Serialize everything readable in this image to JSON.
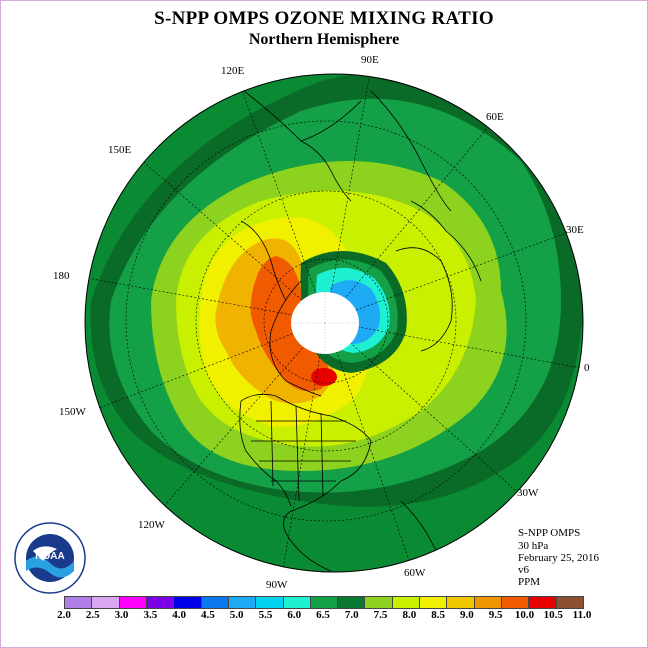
{
  "header": {
    "title": "S-NPP OMPS OZONE MIXING RATIO",
    "subtitle": "Northern Hemisphere"
  },
  "map": {
    "projection": "north-polar-stereographic",
    "longitude_labels": [
      "0",
      "30E",
      "60E",
      "90E",
      "120E",
      "150E",
      "180",
      "150W",
      "120W",
      "90W",
      "60W",
      "30W"
    ],
    "pole_region": "no-data"
  },
  "info": {
    "instrument": "S-NPP OMPS",
    "level": "30 hPa",
    "date": "February 25, 2016",
    "version": "v6",
    "units": "PPM"
  },
  "legend": {
    "ticks": [
      "2.0",
      "2.5",
      "3.0",
      "3.5",
      "4.0",
      "4.5",
      "5.0",
      "5.5",
      "6.0",
      "6.5",
      "7.0",
      "7.5",
      "8.0",
      "8.5",
      "9.0",
      "9.5",
      "10.0",
      "10.5",
      "11.0"
    ],
    "colors": [
      "#b07ee6",
      "#d9a6f0",
      "#ff00ff",
      "#7a00e6",
      "#0000e6",
      "#0a78f0",
      "#1eaaf5",
      "#00d2f0",
      "#1ef0d2",
      "#14a046",
      "#0a7832",
      "#8cd21e",
      "#c8f000",
      "#f0f000",
      "#f0c800",
      "#f09600",
      "#f05a00",
      "#e60000",
      "#8c5032"
    ]
  },
  "logo": {
    "name": "NOAA",
    "ring_text": "NATIONAL OCEANIC AND ATMOSPHERIC ADMINISTRATION · U.S. DEPARTMENT OF COMMERCE"
  },
  "colors": {
    "outer": "#0a8a32",
    "ring_dark": "#0a6a28",
    "light_green": "#8cd21e",
    "yellow_green": "#c8f000",
    "yellow": "#f0f000",
    "orange": "#f0b400",
    "red_orange": "#f05a00",
    "red": "#e60000",
    "cyan": "#00d2f0",
    "blue": "#1eaaf5"
  }
}
